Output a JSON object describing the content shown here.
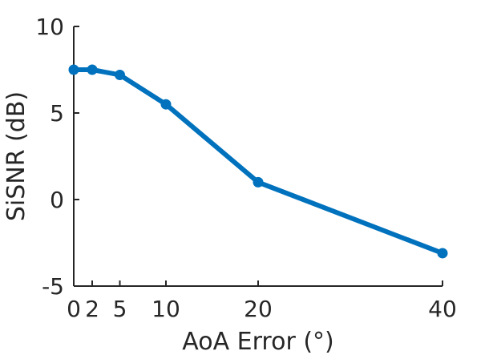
{
  "chart_data": {
    "type": "line",
    "xlabel": "AoA Error (°)",
    "ylabel": "SiSNR (dB)",
    "xlim": [
      0,
      40
    ],
    "ylim": [
      -5,
      10
    ],
    "xticks": [
      0,
      2,
      5,
      10,
      20,
      40
    ],
    "yticks": [
      -5,
      0,
      5,
      10
    ],
    "grid": false,
    "series": [
      {
        "x": [
          0,
          2,
          5,
          10,
          20,
          40
        ],
        "y": [
          7.5,
          7.5,
          7.2,
          5.5,
          1.0,
          -3.1
        ],
        "color": "#0072BD"
      }
    ]
  }
}
